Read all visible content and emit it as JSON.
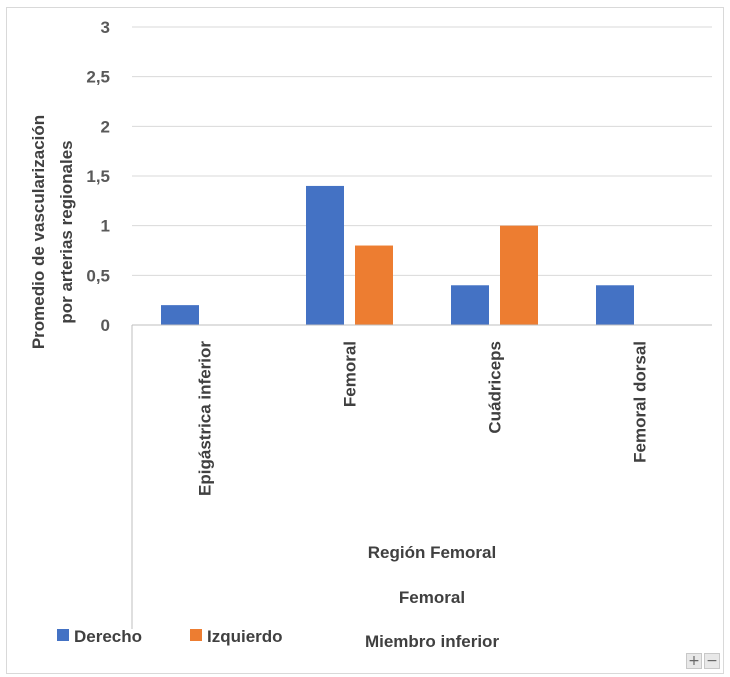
{
  "chart_data": {
    "type": "bar",
    "ylabel_lines": [
      "Promedio de vascularización",
      "por arterias regionales"
    ],
    "ylim": [
      0,
      3
    ],
    "yticks": [
      "0",
      "0,5",
      "1",
      "1,5",
      "2",
      "2,5",
      "3"
    ],
    "categories": [
      "Epigástrica inferior",
      "Femoral",
      "Cuádriceps",
      "Femoral dorsal"
    ],
    "series": [
      {
        "name": "Derecho",
        "color": "#4472c4",
        "values": [
          0.2,
          1.4,
          0.4,
          0.4
        ]
      },
      {
        "name": "Izquierdo",
        "color": "#ed7d31",
        "values": [
          0,
          0.8,
          1.0,
          0
        ]
      }
    ],
    "group_labels": [
      "Región Femoral",
      "Femoral",
      "Miembro inferior"
    ],
    "grid": true,
    "legend_position": "bottom-left"
  },
  "controls": {
    "zoom_in": "+",
    "zoom_out": "−"
  }
}
